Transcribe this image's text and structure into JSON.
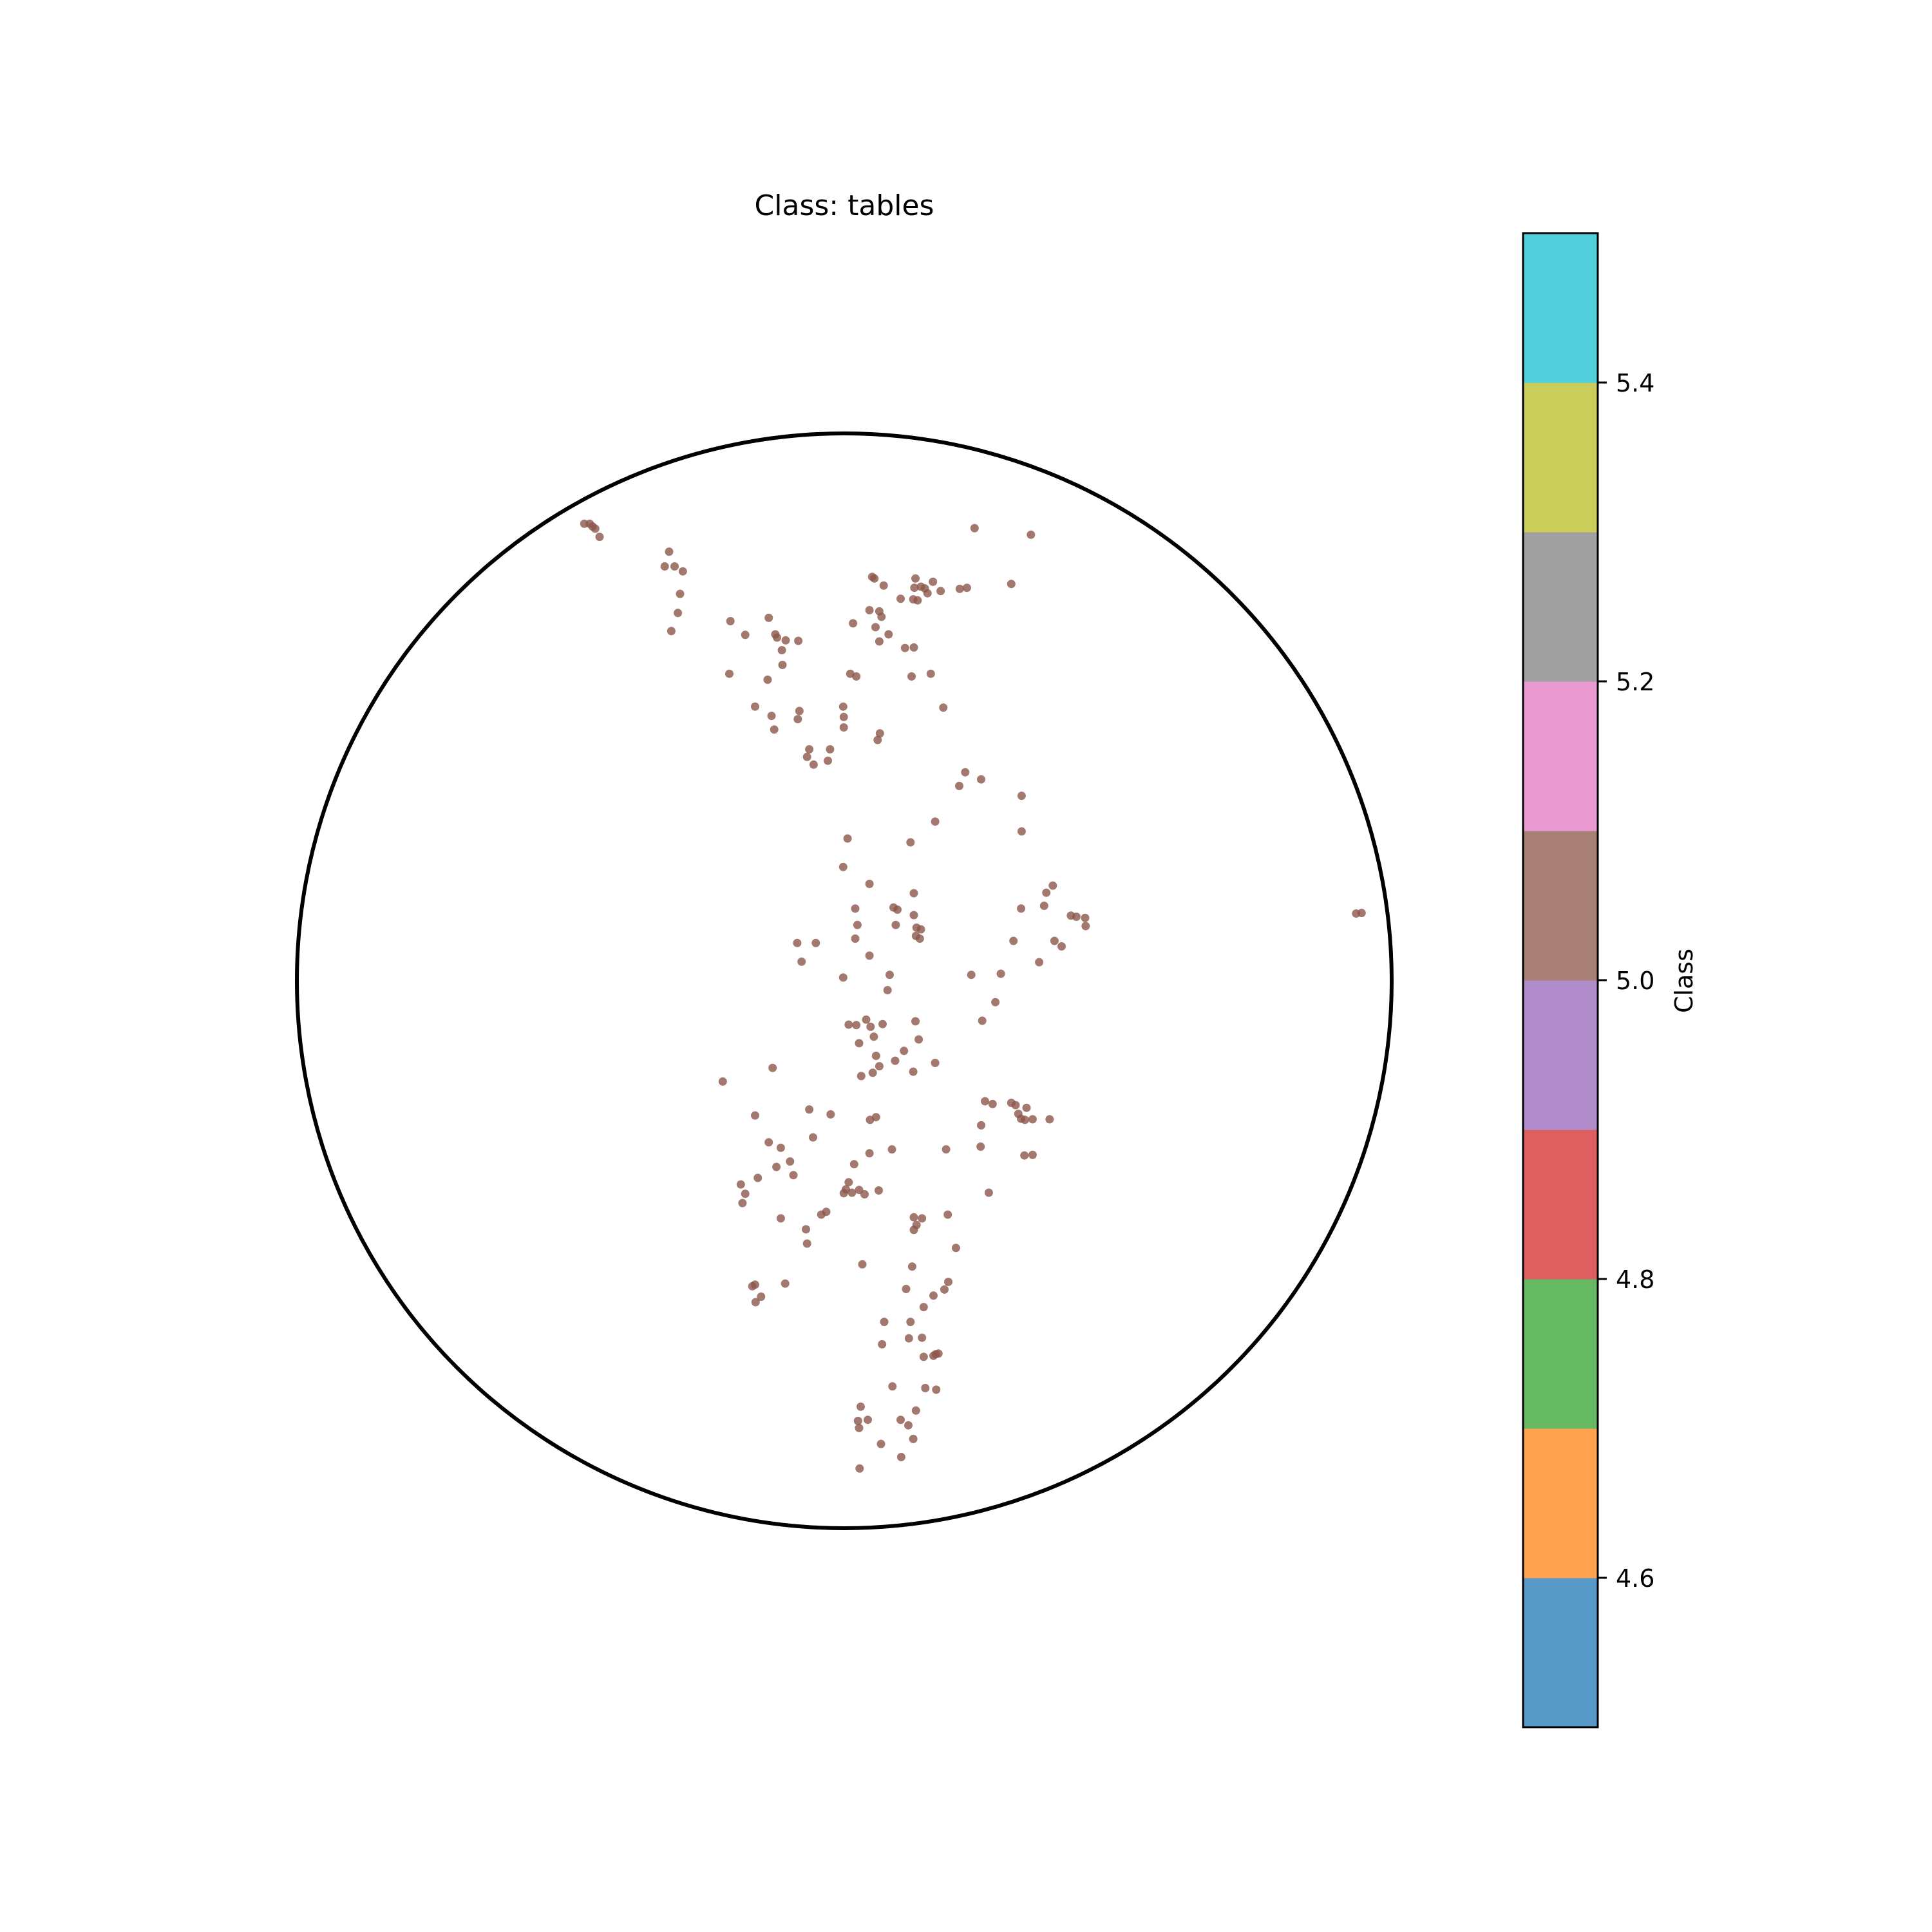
{
  "chart_data": {
    "type": "scatter",
    "title": "Class: tables",
    "coordinate_system": "poincare-disk",
    "xlim": [
      -1,
      1
    ],
    "ylim": [
      -1,
      1
    ],
    "grid": false,
    "marker_color": "#8c564b",
    "marker_alpha": 0.8,
    "series": [
      {
        "class_value": 5.0,
        "points": [
          [
            -0.475,
            0.835
          ],
          [
            -0.465,
            0.835
          ],
          [
            -0.46,
            0.83
          ],
          [
            -0.455,
            0.826
          ],
          [
            -0.447,
            0.811
          ],
          [
            -0.32,
            0.784
          ],
          [
            -0.328,
            0.757
          ],
          [
            -0.31,
            0.757
          ],
          [
            -0.295,
            0.748
          ],
          [
            -0.3,
            0.707
          ],
          [
            -0.304,
            0.672
          ],
          [
            -0.316,
            0.639
          ],
          [
            -0.208,
            0.657
          ],
          [
            -0.181,
            0.632
          ],
          [
            -0.138,
            0.663
          ],
          [
            -0.126,
            0.633
          ],
          [
            -0.123,
            0.627
          ],
          [
            -0.107,
            0.622
          ],
          [
            -0.114,
            0.604
          ],
          [
            -0.084,
            0.621
          ],
          [
            -0.21,
            0.561
          ],
          [
            -0.14,
            0.55
          ],
          [
            -0.113,
            0.577
          ],
          [
            0.011,
            0.561
          ],
          [
            0.022,
            0.556
          ],
          [
            -0.163,
            0.501
          ],
          [
            -0.133,
            0.484
          ],
          [
            -0.082,
            0.493
          ],
          [
            -0.085,
            0.478
          ],
          [
            -0.128,
            0.459
          ],
          [
            -0.064,
            0.423
          ],
          [
            -0.068,
            0.409
          ],
          [
            -0.056,
            0.395
          ],
          [
            -0.026,
            0.423
          ],
          [
            -0.03,
            0.402
          ],
          [
            -0.002,
            0.501
          ],
          [
            -0.001,
            0.482
          ],
          [
            -0.001,
            0.463
          ],
          [
            0.061,
            0.44
          ],
          [
            0.065,
            0.452
          ],
          [
            0.238,
            0.827
          ],
          [
            0.341,
            0.815
          ],
          [
            0.051,
            0.738
          ],
          [
            0.055,
            0.735
          ],
          [
            0.072,
            0.722
          ],
          [
            0.103,
            0.698
          ],
          [
            0.13,
            0.735
          ],
          [
            0.14,
            0.72
          ],
          [
            0.152,
            0.708
          ],
          [
            0.176,
            0.712
          ],
          [
            0.162,
            0.729
          ],
          [
            0.147,
            0.717
          ],
          [
            0.128,
            0.718
          ],
          [
            0.126,
            0.697
          ],
          [
            0.134,
            0.695
          ],
          [
            0.064,
            0.675
          ],
          [
            0.068,
            0.665
          ],
          [
            0.046,
            0.677
          ],
          [
            0.016,
            0.653
          ],
          [
            0.057,
            0.646
          ],
          [
            0.081,
            0.633
          ],
          [
            0.064,
            0.62
          ],
          [
            0.111,
            0.608
          ],
          [
            0.127,
            0.609
          ],
          [
            0.123,
            0.556
          ],
          [
            0.158,
            0.561
          ],
          [
            0.181,
            0.499
          ],
          [
            0.211,
            0.716
          ],
          [
            0.224,
            0.718
          ],
          [
            0.305,
            0.725
          ],
          [
            0.221,
            0.381
          ],
          [
            0.25,
            0.368
          ],
          [
            0.324,
            0.338
          ],
          [
            0.21,
            0.356
          ],
          [
            0.324,
            0.273
          ],
          [
            0.166,
            0.291
          ],
          [
            0.121,
            0.253
          ],
          [
            0.006,
            0.26
          ],
          [
            -0.002,
            0.208
          ],
          [
            0.046,
            0.177
          ],
          [
            0.127,
            0.16
          ],
          [
            0.09,
            0.134
          ],
          [
            0.097,
            0.13
          ],
          [
            0.127,
            0.12
          ],
          [
            0.132,
            0.097
          ],
          [
            0.094,
            0.102
          ],
          [
            0.14,
            0.094
          ],
          [
            0.131,
            0.082
          ],
          [
            0.138,
            0.077
          ],
          [
            0.02,
            0.132
          ],
          [
            0.024,
            0.102
          ],
          [
            0.02,
            0.077
          ],
          [
            0.046,
            0.046
          ],
          [
            -0.086,
            0.069
          ],
          [
            -0.052,
            0.069
          ],
          [
            -0.078,
            0.035
          ],
          [
            -0.002,
            0.006
          ],
          [
            0.083,
            0.011
          ],
          [
            0.079,
            -0.017
          ],
          [
            0.323,
            0.132
          ],
          [
            0.369,
            0.161
          ],
          [
            0.381,
            0.174
          ],
          [
            0.365,
            0.137
          ],
          [
            0.414,
            0.119
          ],
          [
            0.424,
            0.117
          ],
          [
            0.44,
            0.115
          ],
          [
            0.441,
            0.1
          ],
          [
            0.384,
            0.073
          ],
          [
            0.397,
            0.063
          ],
          [
            0.309,
            0.073
          ],
          [
            0.356,
            0.034
          ],
          [
            0.232,
            0.011
          ],
          [
            0.286,
            0.013
          ],
          [
            0.276,
            -0.039
          ],
          [
            0.252,
            -0.073
          ],
          [
            0.935,
            0.123
          ],
          [
            0.945,
            0.124
          ],
          [
            0.008,
            -0.08
          ],
          [
            0.022,
            -0.081
          ],
          [
            0.04,
            -0.071
          ],
          [
            0.048,
            -0.084
          ],
          [
            0.07,
            -0.079
          ],
          [
            0.13,
            -0.074
          ],
          [
            0.136,
            -0.107
          ],
          [
            0.027,
            -0.114
          ],
          [
            0.054,
            -0.102
          ],
          [
            0.058,
            -0.137
          ],
          [
            0.052,
            -0.168
          ],
          [
            0.109,
            -0.128
          ],
          [
            0.064,
            -0.156
          ],
          [
            0.093,
            -0.146
          ],
          [
            0.126,
            -0.166
          ],
          [
            0.166,
            -0.15
          ],
          [
            0.031,
            -0.174
          ],
          [
            -0.131,
            -0.159
          ],
          [
            -0.222,
            -0.184
          ],
          [
            -0.064,
            -0.235
          ],
          [
            -0.025,
            -0.244
          ],
          [
            -0.163,
            -0.246
          ],
          [
            -0.057,
            -0.286
          ],
          [
            -0.138,
            -0.295
          ],
          [
            -0.116,
            -0.305
          ],
          [
            -0.099,
            -0.33
          ],
          [
            -0.124,
            -0.34
          ],
          [
            -0.093,
            -0.355
          ],
          [
            -0.189,
            -0.372
          ],
          [
            -0.186,
            -0.406
          ],
          [
            -0.158,
            -0.36
          ],
          [
            -0.181,
            -0.389
          ],
          [
            0.018,
            -0.335
          ],
          [
            0.046,
            -0.315
          ],
          [
            0.087,
            -0.308
          ],
          [
            0.047,
            -0.254
          ],
          [
            0.058,
            -0.249
          ],
          [
            0.186,
            -0.308
          ],
          [
            0.008,
            -0.368
          ],
          [
            0.003,
            -0.381
          ],
          [
            0.014,
            -0.387
          ],
          [
            0.027,
            -0.382
          ],
          [
            0.037,
            -0.39
          ],
          [
            0.063,
            -0.383
          ],
          [
            -0.001,
            -0.388
          ],
          [
            -0.033,
            -0.422
          ],
          [
            -0.042,
            -0.427
          ],
          [
            -0.07,
            -0.454
          ],
          [
            -0.116,
            -0.434
          ],
          [
            -0.068,
            -0.48
          ],
          [
            0.127,
            -0.432
          ],
          [
            0.142,
            -0.434
          ],
          [
            0.132,
            -0.446
          ],
          [
            0.127,
            -0.455
          ],
          [
            0.189,
            -0.427
          ],
          [
            0.264,
            -0.387
          ],
          [
            0.249,
            -0.303
          ],
          [
            0.25,
            -0.264
          ],
          [
            0.257,
            -0.22
          ],
          [
            0.271,
            -0.225
          ],
          [
            0.313,
            -0.227
          ],
          [
            0.333,
            -0.232
          ],
          [
            0.318,
            -0.243
          ],
          [
            0.323,
            -0.252
          ],
          [
            0.33,
            -0.254
          ],
          [
            0.344,
            -0.253
          ],
          [
            0.375,
            -0.253
          ],
          [
            0.329,
            -0.319
          ],
          [
            0.344,
            -0.318
          ],
          [
            0.305,
            -0.223
          ],
          [
            0.033,
            -0.518
          ],
          [
            -0.108,
            -0.553
          ],
          [
            -0.163,
            -0.555
          ],
          [
            -0.168,
            -0.558
          ],
          [
            -0.152,
            -0.577
          ],
          [
            -0.162,
            -0.587
          ],
          [
            0.124,
            -0.522
          ],
          [
            0.204,
            -0.488
          ],
          [
            0.19,
            -0.55
          ],
          [
            0.183,
            -0.564
          ],
          [
            0.163,
            -0.575
          ],
          [
            0.113,
            -0.563
          ],
          [
            0.145,
            -0.596
          ],
          [
            0.121,
            -0.623
          ],
          [
            0.142,
            -0.652
          ],
          [
            0.073,
            -0.623
          ],
          [
            0.167,
            -0.682
          ],
          [
            0.163,
            -0.685
          ],
          [
            0.145,
            -0.687
          ],
          [
            0.172,
            -0.681
          ],
          [
            0.118,
            -0.653
          ],
          [
            0.069,
            -0.664
          ],
          [
            0.148,
            -0.744
          ],
          [
            0.088,
            -0.741
          ],
          [
            0.168,
            -0.747
          ],
          [
            0.03,
            -0.778
          ],
          [
            0.043,
            -0.802
          ],
          [
            0.025,
            -0.804
          ],
          [
            0.027,
            -0.817
          ],
          [
            0.131,
            -0.785
          ],
          [
            0.117,
            -0.812
          ],
          [
            0.103,
            -0.802
          ],
          [
            0.067,
            -0.846
          ],
          [
            0.126,
            -0.837
          ],
          [
            0.104,
            -0.87
          ],
          [
            0.028,
            -0.891
          ]
        ]
      }
    ],
    "colorbar": {
      "label": "Class",
      "vmin": 4.5,
      "vmax": 5.5,
      "ticks": [
        4.6,
        4.8,
        5.0,
        5.2,
        5.4
      ],
      "tick_labels": [
        "4.6",
        "4.8",
        "5.0",
        "5.2",
        "5.4"
      ],
      "colors": [
        "#5799c7",
        "#ffa24e",
        "#65b963",
        "#df5f60",
        "#b08dca",
        "#a88076",
        "#ea9ad0",
        "#a0a0a0",
        "#cbcd5b",
        "#53cfdb"
      ]
    }
  }
}
